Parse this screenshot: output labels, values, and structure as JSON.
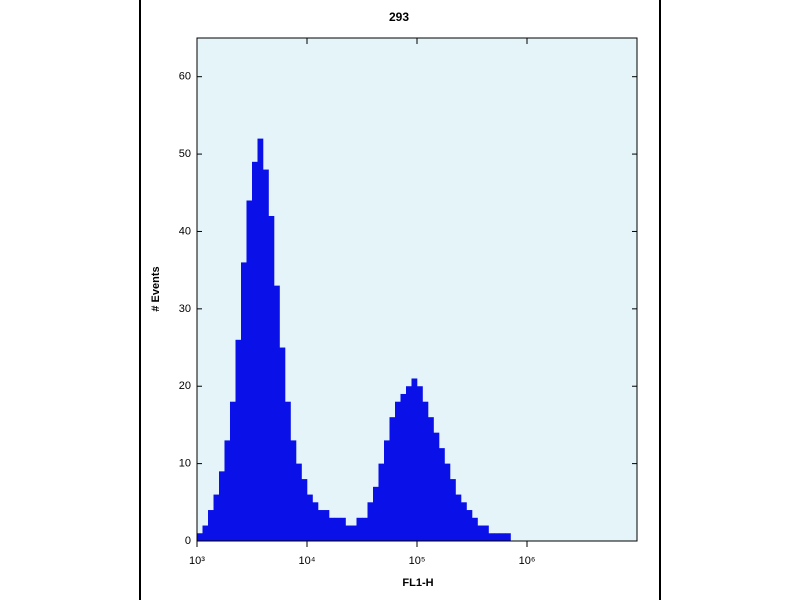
{
  "chart_data": {
    "type": "histogram",
    "title": "293",
    "xlabel": "FL1-H",
    "ylabel": "# Events",
    "log_x": true,
    "color": "#0a10e8",
    "background": "#e4f4f9",
    "bins": [
      1000,
      1122,
      1259,
      1413,
      1585,
      1778,
      1995,
      2239,
      2512,
      2818,
      3162,
      3548,
      3981,
      4467,
      5012,
      5623,
      6310,
      7079,
      7943,
      8913,
      10000,
      11220,
      12590,
      14130,
      15850,
      17780,
      19950,
      22390,
      25120,
      28180,
      31620,
      35480,
      39810,
      44670,
      50120,
      56230,
      63100,
      70790,
      79430,
      89130,
      100000,
      112200,
      125900,
      141300,
      158500,
      177800,
      199500,
      223900,
      251200,
      281800,
      316200,
      354800,
      398100,
      446700,
      501200,
      562300,
      631000,
      707900,
      794300,
      891300,
      1000000,
      1122000,
      1259000,
      1413000,
      1585000,
      1778000,
      1995000,
      2239000,
      2512000,
      2818000,
      3162000
    ],
    "values": [
      1,
      2,
      4,
      6,
      9,
      13,
      18,
      26,
      36,
      44,
      49,
      52,
      48,
      42,
      33,
      25,
      18,
      13,
      10,
      8,
      6,
      5,
      4,
      4,
      3,
      3,
      3,
      2,
      2,
      3,
      3,
      5,
      7,
      10,
      13,
      16,
      18,
      19,
      20,
      21,
      20,
      18,
      16,
      14,
      12,
      10,
      8,
      6,
      5,
      4,
      3,
      2,
      2,
      1,
      1,
      1,
      1,
      0,
      0,
      0,
      0,
      0,
      0,
      0,
      0,
      0,
      0,
      0,
      0,
      0
    ],
    "xlim": [
      1000,
      10000000
    ],
    "ylim": [
      0,
      65
    ],
    "xticks": [
      {
        "value": 1000,
        "label": "10³"
      },
      {
        "value": 10000,
        "label": "10⁴"
      },
      {
        "value": 100000,
        "label": "10⁵"
      },
      {
        "value": 1000000,
        "label": "10⁶"
      }
    ],
    "yticks": [
      0,
      10,
      20,
      30,
      40,
      50,
      60
    ]
  }
}
